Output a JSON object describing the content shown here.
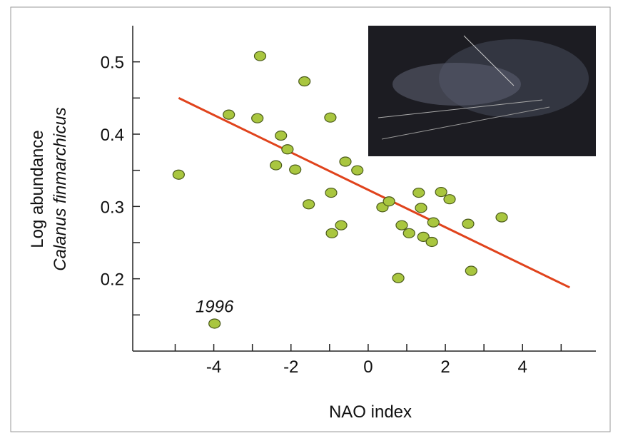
{
  "chart_data": {
    "type": "scatter",
    "x_label": "NAO index",
    "y_label": [
      "Log abundance",
      "Calanus finmarchicus"
    ],
    "annotations": [
      {
        "text": "1996",
        "point": 31
      }
    ],
    "xlim": [
      -6.1,
      5.9
    ],
    "ylim": [
      0.1,
      0.55
    ],
    "xticks": [
      -4,
      -2,
      0,
      2,
      4
    ],
    "xminorticks": [
      -5,
      -3,
      -1,
      1,
      3,
      5
    ],
    "yticks": [
      0.2,
      0.3,
      0.4,
      0.5
    ],
    "yminorticks": [
      0.15,
      0.25,
      0.35,
      0.45
    ],
    "series": [
      {
        "color": "#a9c63f",
        "x": [
          -4.91,
          -2.8,
          -3.61,
          -2.87,
          -1.65,
          -2.26,
          -2.09,
          -2.39,
          -1.89,
          -1.54,
          -0.98,
          -0.96,
          -0.94,
          -0.7,
          -0.59,
          -0.28,
          0.37,
          0.54,
          0.78,
          0.87,
          1.06,
          1.31,
          1.37,
          1.43,
          1.65,
          1.69,
          1.89,
          2.11,
          2.59,
          2.67,
          3.46,
          -3.98
        ],
        "values": [
          0.344,
          0.508,
          0.427,
          0.422,
          0.473,
          0.398,
          0.379,
          0.357,
          0.351,
          0.303,
          0.423,
          0.319,
          0.263,
          0.274,
          0.362,
          0.35,
          0.299,
          0.307,
          0.201,
          0.274,
          0.263,
          0.319,
          0.298,
          0.258,
          0.251,
          0.278,
          0.32,
          0.31,
          0.276,
          0.211,
          0.285,
          0.138
        ]
      }
    ],
    "trend_line": {
      "color": "#e0431c",
      "x": [
        -4.91,
        5.22
      ],
      "values": [
        0.45,
        0.188
      ]
    }
  }
}
